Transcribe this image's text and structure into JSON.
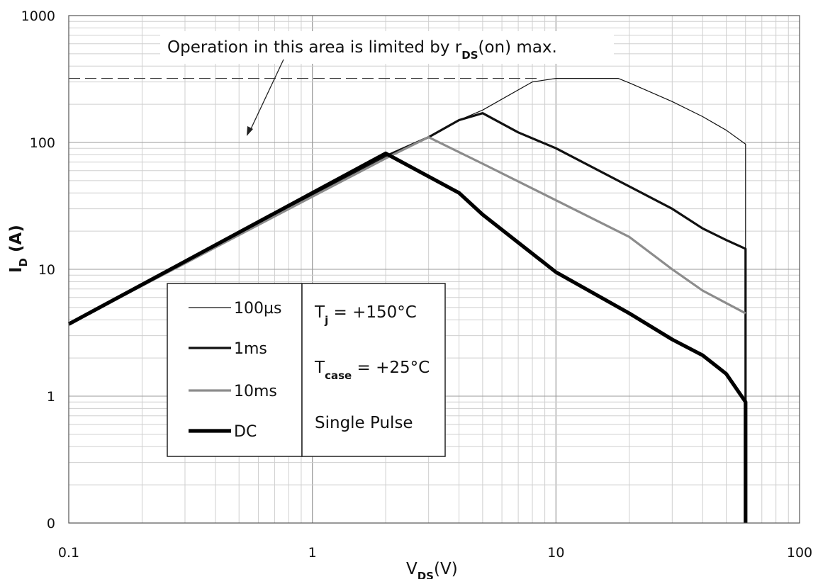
{
  "chart_data": {
    "type": "line",
    "x_scale": "log",
    "y_scale": "log",
    "xlim": [
      0.1,
      100
    ],
    "ylim_decades": [
      0,
      1000
    ],
    "grid": true,
    "x_ticks": [
      "0.1",
      "1",
      "10",
      "100"
    ],
    "y_ticks": [
      "0",
      "1",
      "10",
      "100",
      "1000"
    ],
    "xlabel": {
      "main": "V",
      "sub": "DS",
      "unit": "(V)"
    },
    "ylabel": {
      "main": "I",
      "sub": "D",
      "unit": " (A)"
    },
    "annotation": {
      "text_before": "Operation in this area is limited by r",
      "text_sub": "DS",
      "text_after": "(on) max."
    },
    "rds_limit_level": 320,
    "series": [
      {
        "name": "100µs",
        "color": "#111111",
        "width": 1.2,
        "points": [
          [
            0.1,
            3.7
          ],
          [
            2,
            78
          ],
          [
            3,
            110
          ],
          [
            4,
            150
          ],
          [
            5,
            180
          ],
          [
            8,
            300
          ],
          [
            10,
            320
          ],
          [
            18,
            320
          ],
          [
            20,
            295
          ],
          [
            30,
            210
          ],
          [
            40,
            160
          ],
          [
            50,
            125
          ],
          [
            60,
            97
          ],
          [
            60,
            0.1
          ]
        ]
      },
      {
        "name": "1ms",
        "color": "#111111",
        "width": 3.2,
        "points": [
          [
            0.1,
            3.7
          ],
          [
            2,
            78
          ],
          [
            3,
            110
          ],
          [
            4,
            150
          ],
          [
            5,
            170
          ],
          [
            7,
            120
          ],
          [
            10,
            90
          ],
          [
            20,
            45
          ],
          [
            30,
            30
          ],
          [
            40,
            21
          ],
          [
            50,
            17
          ],
          [
            60,
            14.5
          ],
          [
            60,
            0.1
          ]
        ]
      },
      {
        "name": "10ms",
        "color": "#8c8c8c",
        "width": 3.2,
        "points": [
          [
            0.1,
            3.7
          ],
          [
            2,
            75
          ],
          [
            3,
            110
          ],
          [
            5,
            68
          ],
          [
            10,
            35
          ],
          [
            20,
            18
          ],
          [
            30,
            10
          ],
          [
            40,
            6.8
          ],
          [
            60,
            4.5
          ]
        ]
      },
      {
        "name": "DC",
        "color": "#000000",
        "width": 5.2,
        "points": [
          [
            0.1,
            3.7
          ],
          [
            2,
            82
          ],
          [
            4,
            40
          ],
          [
            5,
            27
          ],
          [
            10,
            9.5
          ],
          [
            20,
            4.5
          ],
          [
            30,
            2.8
          ],
          [
            40,
            2.1
          ],
          [
            50,
            1.5
          ],
          [
            60,
            0.9
          ],
          [
            60,
            0.1
          ]
        ]
      }
    ],
    "conditions": {
      "tj": {
        "main": "T",
        "sub": "j",
        "value": "  = +150°C"
      },
      "tcase": {
        "main": "T",
        "sub": "case",
        "value": " = +25°C"
      },
      "pulse": "Single Pulse"
    }
  }
}
